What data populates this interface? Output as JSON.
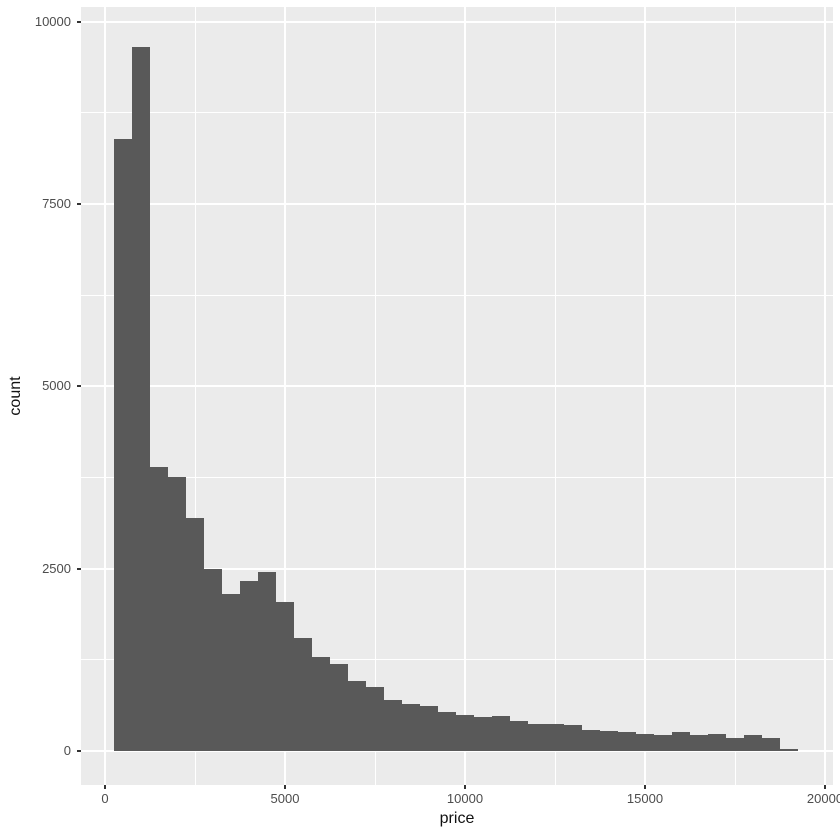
{
  "chart_data": {
    "type": "bar",
    "subtype": "histogram",
    "title": "",
    "xlabel": "price",
    "ylabel": "count",
    "bin_width": 500,
    "bin_starts": [
      250,
      750,
      1250,
      1750,
      2250,
      2750,
      3250,
      3750,
      4250,
      4750,
      5250,
      5750,
      6250,
      6750,
      7250,
      7750,
      8250,
      8750,
      9250,
      9750,
      10250,
      10750,
      11250,
      11750,
      12250,
      12750,
      13250,
      13750,
      14250,
      14750,
      15250,
      15750,
      16250,
      16750,
      17250,
      17750,
      18250,
      18750
    ],
    "counts": [
      8390,
      9650,
      3900,
      3760,
      3190,
      2500,
      2150,
      2330,
      2450,
      2040,
      1550,
      1290,
      1190,
      960,
      875,
      700,
      640,
      615,
      540,
      490,
      465,
      480,
      410,
      370,
      375,
      350,
      290,
      275,
      265,
      236,
      225,
      264,
      223,
      236,
      185,
      215,
      185,
      32
    ],
    "xlim": [
      -667,
      20222
    ],
    "ylim": [
      -480,
      10201
    ],
    "x_tick_values": [
      0,
      5000,
      10000,
      15000,
      20000
    ],
    "x_tick_labels": [
      "0",
      "5000",
      "10000",
      "15000",
      "20000"
    ],
    "x_minor_gridlines": [
      2500,
      7500,
      12500,
      17500
    ],
    "y_tick_values": [
      0,
      2500,
      5000,
      7500,
      10000
    ],
    "y_tick_labels": [
      "0",
      "2500",
      "5000",
      "7500",
      "10000"
    ],
    "y_minor_gridlines": [
      1250,
      3750,
      6250,
      8750
    ],
    "grid": "major-and-minor",
    "legend": "none",
    "theme": "ggplot2-grey"
  },
  "colors": {
    "background": "#FFFFFF",
    "panel_bg": "#EBEBEB",
    "gridline": "#FFFFFF",
    "bar_fill": "#595959",
    "tick_mark": "#333333",
    "tick_label": "#4D4D4D",
    "axis_title": "#111111"
  }
}
